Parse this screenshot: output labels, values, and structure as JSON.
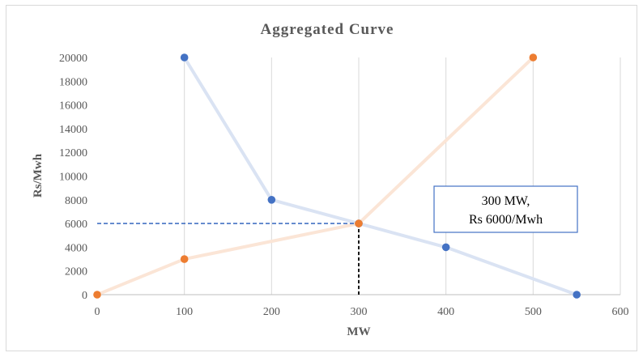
{
  "chart_data": {
    "type": "scatter",
    "title": "Aggregated Curve",
    "xlabel": "MW",
    "ylabel": "Rs/Mwh",
    "xlim": [
      0,
      600
    ],
    "ylim": [
      0,
      20000
    ],
    "xticks": [
      0,
      100,
      200,
      300,
      400,
      500,
      600
    ],
    "yticks": [
      0,
      2000,
      4000,
      6000,
      8000,
      10000,
      12000,
      14000,
      16000,
      18000,
      20000
    ],
    "grid": "vertical",
    "legend": "none",
    "series": [
      {
        "color": "#4472c4",
        "line_color": "#dae3f3",
        "x": [
          100,
          200,
          300,
          400,
          550
        ],
        "y": [
          20000,
          8000,
          6000,
          4000,
          0
        ]
      },
      {
        "color": "#ed7d31",
        "line_color": "#fbe5d6",
        "x": [
          0,
          100,
          300,
          500
        ],
        "y": [
          0,
          3000,
          6000,
          20000
        ]
      }
    ],
    "guides": [
      {
        "orientation": "horizontal",
        "color": "#4472c4",
        "value": 6000,
        "from": 0,
        "to": 300
      },
      {
        "orientation": "vertical",
        "color": "#000000",
        "value": 300,
        "from": 0,
        "to": 6000
      }
    ],
    "annotation": {
      "lines": [
        "300 MW,",
        "Rs 6000/Mwh"
      ],
      "border_color": "#4472c4"
    }
  }
}
